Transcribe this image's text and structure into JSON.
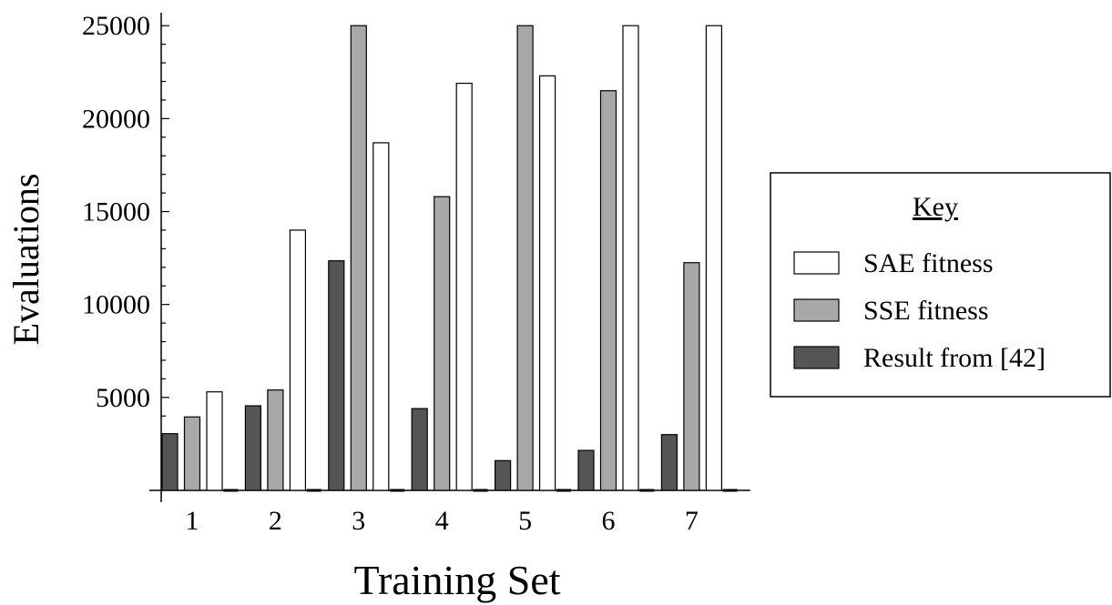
{
  "chart_data": {
    "type": "bar",
    "xlabel": "Training Set",
    "ylabel": "Evaluations",
    "categories": [
      "1",
      "2",
      "3",
      "4",
      "5",
      "6",
      "7"
    ],
    "yticks": [
      "5000",
      "10000",
      "15000",
      "20000",
      "25000"
    ],
    "ylim": [
      0,
      25500
    ],
    "grid": false,
    "legend": {
      "title": "Key",
      "placement": "right"
    },
    "series": [
      {
        "name": "Result from [42]",
        "color": "#555555",
        "values": [
          3050,
          4550,
          12350,
          4400,
          1600,
          2150,
          3000
        ]
      },
      {
        "name": "SSE fitness",
        "color": "#a8a8a8",
        "values": [
          3950,
          5400,
          25000,
          15800,
          25000,
          21500,
          12250
        ]
      },
      {
        "name": "SAE fitness",
        "color": "#ffffff",
        "values": [
          5300,
          14000,
          18700,
          21900,
          22300,
          25000,
          25000
        ]
      }
    ],
    "legend_order": [
      2,
      1,
      0
    ]
  }
}
